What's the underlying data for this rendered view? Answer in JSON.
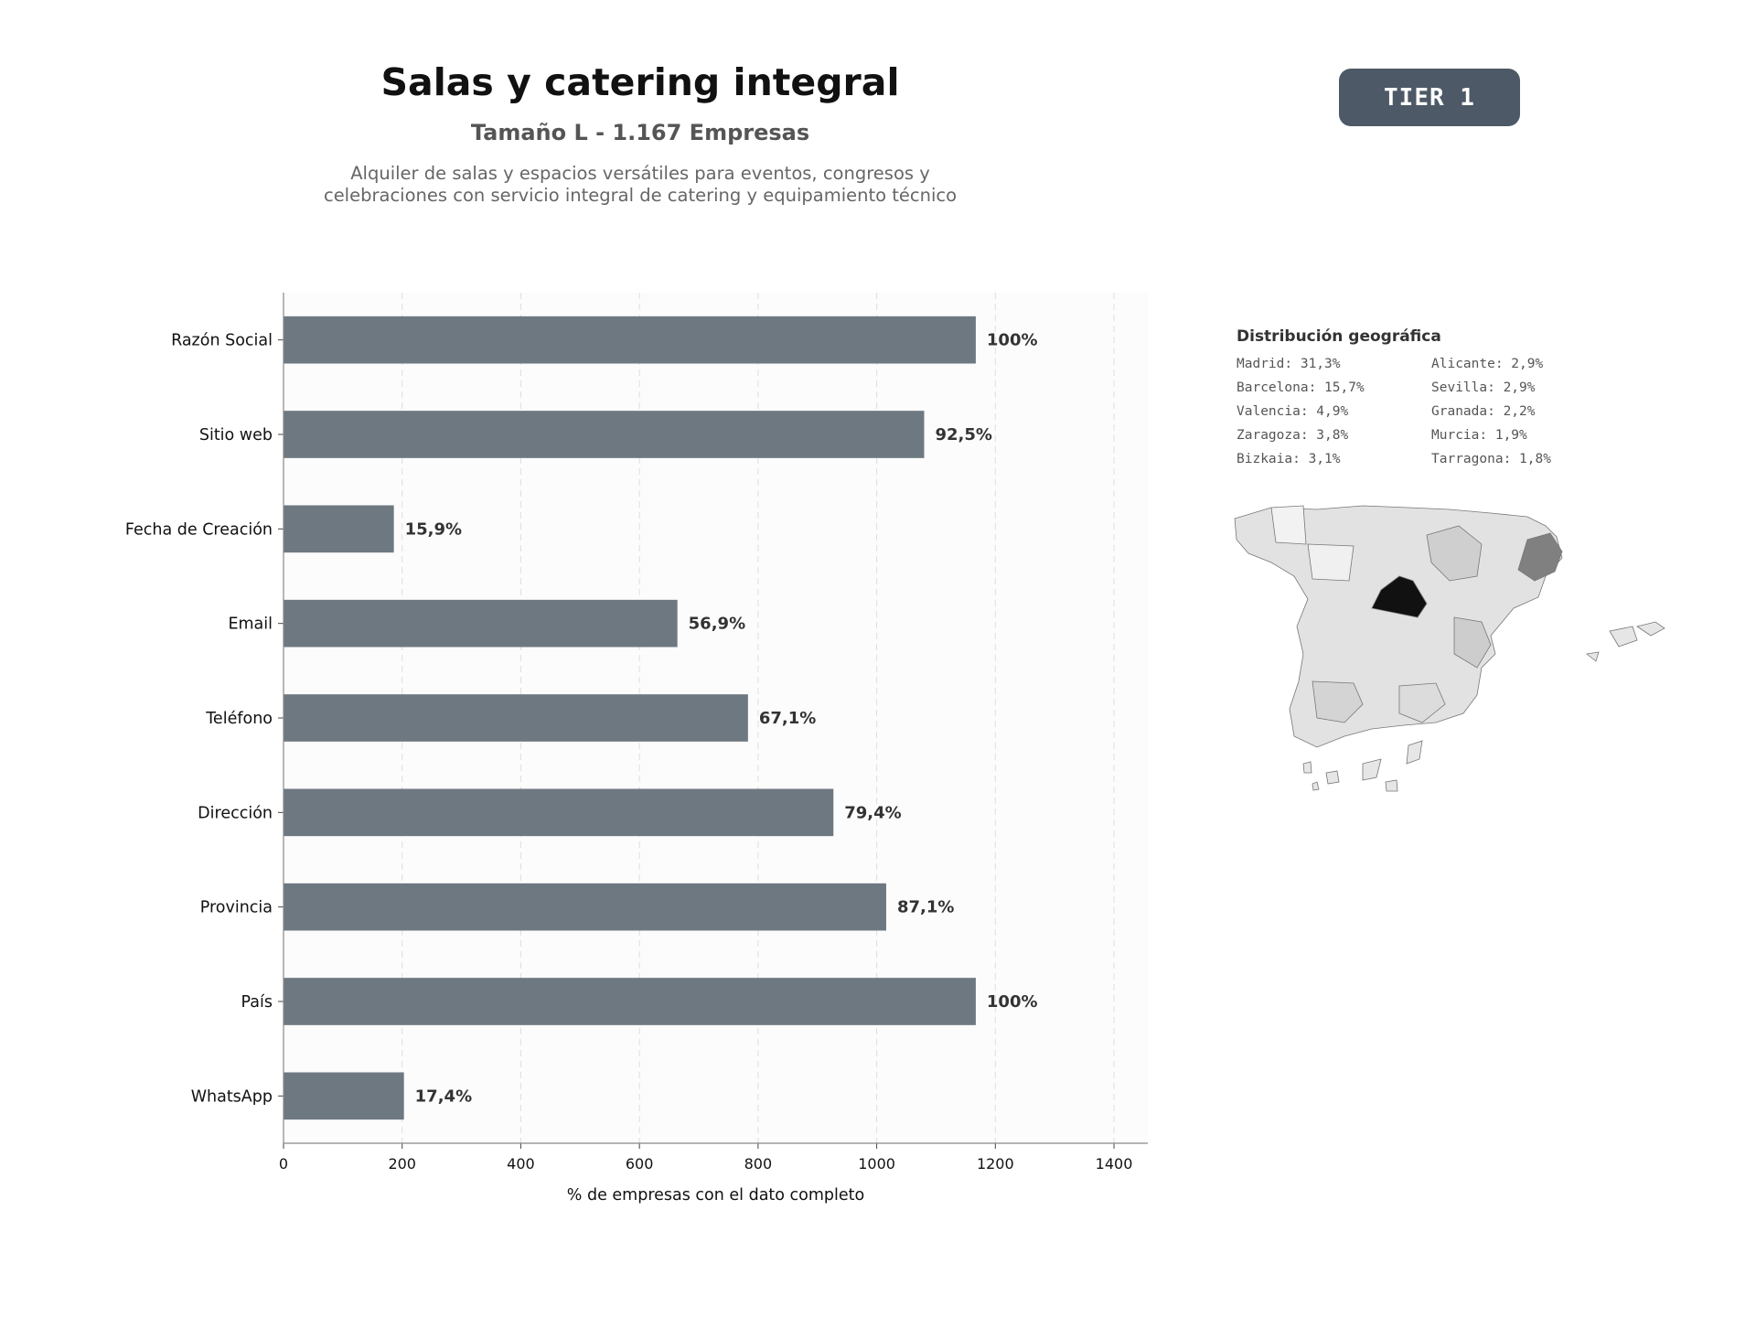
{
  "header": {
    "title": "Salas y catering integral",
    "subtitle": "Tamaño L - 1.167 Empresas",
    "description_line1": "Alquiler de salas y espacios versátiles para eventos, congresos y",
    "description_line2": "celebraciones con servicio integral de catering y equipamiento técnico"
  },
  "badge": {
    "label": "TIER 1"
  },
  "colors": {
    "bar": "#6e7881",
    "badge": "#4d5966",
    "map_highlight": "#111111"
  },
  "chart_data": {
    "type": "bar",
    "orientation": "horizontal",
    "categories": [
      "Razón Social",
      "Sitio web",
      "Fecha de Creación",
      "Email",
      "Teléfono",
      "Dirección",
      "Provincia",
      "País",
      "WhatsApp"
    ],
    "values": [
      1167,
      1080,
      186,
      664,
      783,
      927,
      1016,
      1167,
      203
    ],
    "data_labels": [
      "100%",
      "92,5%",
      "15,9%",
      "56,9%",
      "67,1%",
      "79,4%",
      "87,1%",
      "100%",
      "17,4%"
    ],
    "xlabel": "% de empresas con el dato completo",
    "xticks": [
      0,
      200,
      400,
      600,
      800,
      1000,
      1200,
      1400
    ],
    "xlim": [
      0,
      1457
    ],
    "grid": "vertical-dashed"
  },
  "geo": {
    "title": "Distribución geográfica",
    "items": [
      "Madrid: 31,3%",
      "Alicante: 2,9%",
      "Barcelona: 15,7%",
      "Sevilla: 2,9%",
      "Valencia: 4,9%",
      "Granada: 2,2%",
      "Zaragoza: 3,8%",
      "Murcia: 1,9%",
      "Bizkaia: 3,1%",
      "Tarragona: 1,8%"
    ]
  }
}
